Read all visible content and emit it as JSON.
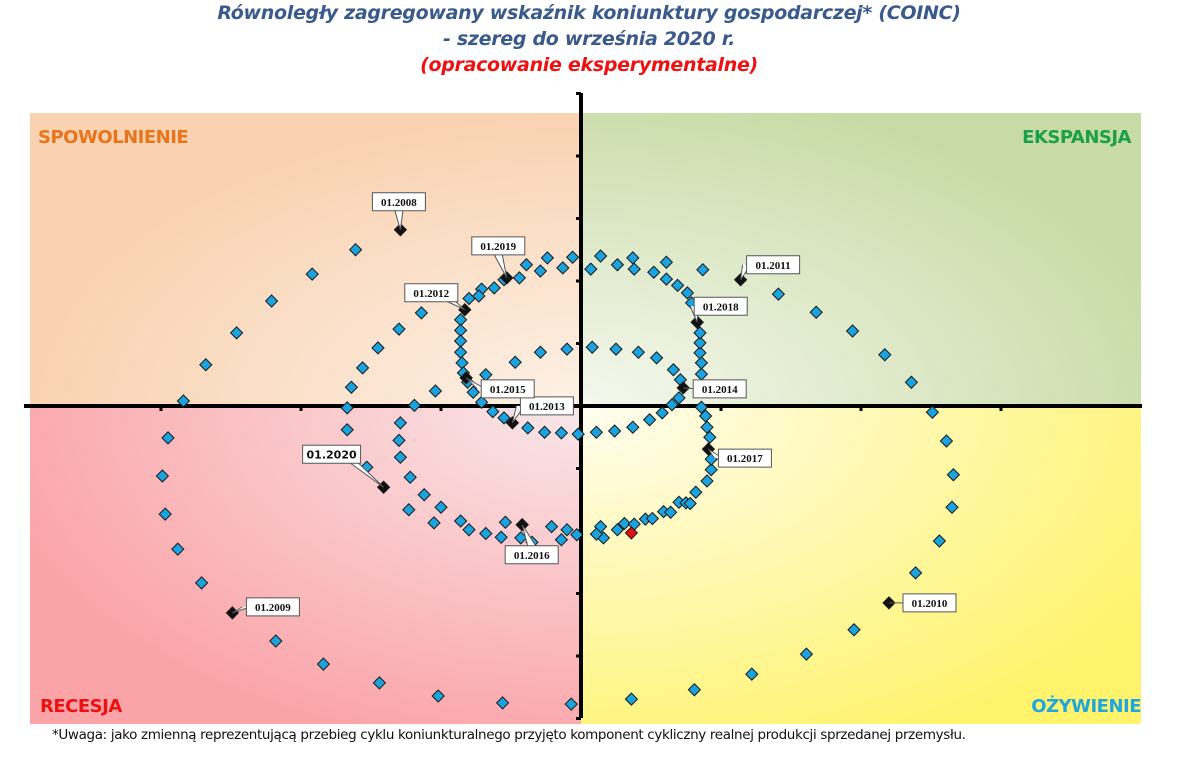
{
  "chart_data": {
    "type": "scatter",
    "title": "Równoległy zagregowany wskaźnik koniunktury gospodarczej* (COINC)",
    "subtitle": "- szereg do września 2020 r.",
    "note": "(opracowanie eksperymentalne)",
    "xlabel": "",
    "ylabel": "",
    "xlim": [
      -3.96,
      4.0
    ],
    "ylim": [
      -5.0,
      5.0
    ],
    "x_ticks": [
      -3,
      -2,
      -1,
      1,
      2,
      3
    ],
    "y_ticks": [
      -5,
      -4,
      -3,
      -2,
      -1,
      1,
      2,
      3,
      4,
      5
    ],
    "grid": false,
    "quadrants": {
      "top_left": {
        "label": "SPOWOLNIENIE",
        "color": "#e8741c",
        "fill": "#f9d5b6"
      },
      "top_right": {
        "label": "EKSPANSJA",
        "color": "#1aa04a",
        "fill": "#cfdfb0"
      },
      "bottom_left": {
        "label": "RECESJA",
        "color": "#ee1111",
        "fill": "#fba9ad"
      },
      "bottom_right": {
        "label": "OŻYWIENIE",
        "color": "#1ea6e0",
        "fill": "#fff57a"
      }
    },
    "marker_colors": {
      "regular": "#1ba3e0",
      "labeled": "#111111",
      "latest": "#e01010"
    },
    "points": [
      {
        "x": -1.29,
        "y": 2.82,
        "label": "01.2008"
      },
      {
        "x": -1.61,
        "y": 2.5
      },
      {
        "x": -1.92,
        "y": 2.11
      },
      {
        "x": -2.21,
        "y": 1.68
      },
      {
        "x": -2.46,
        "y": 1.17
      },
      {
        "x": -2.68,
        "y": 0.66
      },
      {
        "x": -2.84,
        "y": 0.08
      },
      {
        "x": -2.95,
        "y": -0.51
      },
      {
        "x": -2.99,
        "y": -1.12
      },
      {
        "x": -2.97,
        "y": -1.73
      },
      {
        "x": -2.88,
        "y": -2.29
      },
      {
        "x": -2.71,
        "y": -2.83
      },
      {
        "x": -2.49,
        "y": -3.31,
        "label": "01.2009"
      },
      {
        "x": -2.18,
        "y": -3.76
      },
      {
        "x": -1.84,
        "y": -4.13
      },
      {
        "x": -1.44,
        "y": -4.43
      },
      {
        "x": -1.02,
        "y": -4.64
      },
      {
        "x": -0.56,
        "y": -4.75
      },
      {
        "x": -0.07,
        "y": -4.77
      },
      {
        "x": 0.36,
        "y": -4.69
      },
      {
        "x": 0.81,
        "y": -4.54
      },
      {
        "x": 1.22,
        "y": -4.29
      },
      {
        "x": 1.61,
        "y": -3.97
      },
      {
        "x": 1.95,
        "y": -3.58
      },
      {
        "x": 2.2,
        "y": -3.15,
        "label": "01.2010"
      },
      {
        "x": 2.39,
        "y": -2.67
      },
      {
        "x": 2.56,
        "y": -2.16
      },
      {
        "x": 2.65,
        "y": -1.62
      },
      {
        "x": 2.66,
        "y": -1.1
      },
      {
        "x": 2.61,
        "y": -0.56
      },
      {
        "x": 2.51,
        "y": -0.1
      },
      {
        "x": 2.36,
        "y": 0.38
      },
      {
        "x": 2.17,
        "y": 0.82
      },
      {
        "x": 1.94,
        "y": 1.2
      },
      {
        "x": 1.68,
        "y": 1.5
      },
      {
        "x": 1.41,
        "y": 1.79
      },
      {
        "x": 1.14,
        "y": 2.02,
        "label": "01.2011"
      },
      {
        "x": 0.87,
        "y": 2.18
      },
      {
        "x": 0.61,
        "y": 2.3
      },
      {
        "x": 0.37,
        "y": 2.37
      },
      {
        "x": 0.14,
        "y": 2.4
      },
      {
        "x": -0.06,
        "y": 2.38
      },
      {
        "x": -0.24,
        "y": 2.37
      },
      {
        "x": -0.39,
        "y": 2.26
      },
      {
        "x": -0.55,
        "y": 2.02
      },
      {
        "x": -0.71,
        "y": 1.87
      },
      {
        "x": -0.8,
        "y": 1.72
      },
      {
        "x": -0.83,
        "y": 1.54,
        "label": "01.2012"
      },
      {
        "x": -0.86,
        "y": 1.38
      },
      {
        "x": -0.86,
        "y": 1.21
      },
      {
        "x": -0.86,
        "y": 1.04
      },
      {
        "x": -0.86,
        "y": 0.86
      },
      {
        "x": -0.85,
        "y": 0.69
      },
      {
        "x": -0.84,
        "y": 0.53
      },
      {
        "x": -0.81,
        "y": 0.38
      },
      {
        "x": -0.77,
        "y": 0.22
      },
      {
        "x": -0.71,
        "y": 0.06
      },
      {
        "x": -0.63,
        "y": -0.09
      },
      {
        "x": -0.55,
        "y": -0.19
      },
      {
        "x": -0.49,
        "y": -0.27,
        "label": "01.2013"
      },
      {
        "x": -0.38,
        "y": -0.35
      },
      {
        "x": -0.26,
        "y": -0.42
      },
      {
        "x": -0.14,
        "y": -0.43
      },
      {
        "x": -0.02,
        "y": -0.45
      },
      {
        "x": 0.11,
        "y": -0.42
      },
      {
        "x": 0.24,
        "y": -0.4
      },
      {
        "x": 0.37,
        "y": -0.34
      },
      {
        "x": 0.49,
        "y": -0.22
      },
      {
        "x": 0.58,
        "y": -0.11
      },
      {
        "x": 0.65,
        "y": 0.02
      },
      {
        "x": 0.7,
        "y": 0.13
      },
      {
        "x": 0.73,
        "y": 0.29,
        "label": "01.2014"
      },
      {
        "x": 0.71,
        "y": 0.42
      },
      {
        "x": 0.66,
        "y": 0.58
      },
      {
        "x": 0.54,
        "y": 0.77
      },
      {
        "x": 0.41,
        "y": 0.86
      },
      {
        "x": 0.25,
        "y": 0.91
      },
      {
        "x": 0.08,
        "y": 0.94
      },
      {
        "x": -0.1,
        "y": 0.91
      },
      {
        "x": -0.29,
        "y": 0.86
      },
      {
        "x": -0.47,
        "y": 0.7
      },
      {
        "x": -0.68,
        "y": 0.5
      },
      {
        "x": -0.82,
        "y": 0.45,
        "label": "01.2015"
      },
      {
        "x": -1.04,
        "y": 0.24
      },
      {
        "x": -1.19,
        "y": 0.01
      },
      {
        "x": -1.29,
        "y": -0.27
      },
      {
        "x": -1.3,
        "y": -0.55
      },
      {
        "x": -1.29,
        "y": -0.82
      },
      {
        "x": -1.22,
        "y": -1.14
      },
      {
        "x": -1.12,
        "y": -1.42
      },
      {
        "x": -1.0,
        "y": -1.62
      },
      {
        "x": -0.86,
        "y": -1.84
      },
      {
        "x": -0.68,
        "y": -2.04
      },
      {
        "x": -0.54,
        "y": -1.86
      },
      {
        "x": -0.43,
        "y": -2.11
      },
      {
        "x": -0.42,
        "y": -1.9
      },
      {
        "x": -0.42,
        "y": -1.9,
        "label": "01.2016"
      },
      {
        "x": -0.21,
        "y": -1.93
      },
      {
        "x": -0.1,
        "y": -1.98
      },
      {
        "x": -0.03,
        "y": -2.06
      },
      {
        "x": 0.14,
        "y": -1.93
      },
      {
        "x": 0.16,
        "y": -2.11
      },
      {
        "x": 0.31,
        "y": -1.88
      },
      {
        "x": 0.46,
        "y": -1.81
      },
      {
        "x": 0.59,
        "y": -1.69
      },
      {
        "x": 0.7,
        "y": -1.54
      },
      {
        "x": 0.82,
        "y": -1.38
      },
      {
        "x": 0.9,
        "y": -1.2
      },
      {
        "x": 0.93,
        "y": -1.02
      },
      {
        "x": 0.93,
        "y": -0.85
      },
      {
        "x": 0.91,
        "y": -0.69,
        "label": "01.2017"
      },
      {
        "x": 0.92,
        "y": -0.5
      },
      {
        "x": 0.9,
        "y": -0.34
      },
      {
        "x": 0.89,
        "y": -0.16
      },
      {
        "x": 0.86,
        "y": -0.02
      },
      {
        "x": 0.86,
        "y": 0.51
      },
      {
        "x": 0.86,
        "y": 0.69
      },
      {
        "x": 0.85,
        "y": 0.85
      },
      {
        "x": 0.85,
        "y": 1.01
      },
      {
        "x": 0.85,
        "y": 1.17
      },
      {
        "x": 0.83,
        "y": 1.34
      },
      {
        "x": 0.83,
        "y": 1.34,
        "label": "01.2018"
      },
      {
        "x": 0.79,
        "y": 1.65
      },
      {
        "x": 0.76,
        "y": 1.81
      },
      {
        "x": 0.69,
        "y": 1.93
      },
      {
        "x": 0.61,
        "y": 2.03
      },
      {
        "x": 0.52,
        "y": 2.14
      },
      {
        "x": 0.38,
        "y": 2.19
      },
      {
        "x": 0.26,
        "y": 2.26
      },
      {
        "x": 0.07,
        "y": 2.19
      },
      {
        "x": -0.13,
        "y": 2.21
      },
      {
        "x": -0.29,
        "y": 2.16
      },
      {
        "x": -0.44,
        "y": 2.05
      },
      {
        "x": -0.53,
        "y": 2.05,
        "label": "01.2019"
      },
      {
        "x": -0.62,
        "y": 1.89
      },
      {
        "x": -0.73,
        "y": 1.76
      },
      {
        "x": -1.14,
        "y": 1.49
      },
      {
        "x": -1.3,
        "y": 1.23
      },
      {
        "x": -1.45,
        "y": 0.93
      },
      {
        "x": -1.56,
        "y": 0.61
      },
      {
        "x": -1.64,
        "y": 0.3
      },
      {
        "x": -1.67,
        "y": -0.03
      },
      {
        "x": -1.67,
        "y": -0.38
      },
      {
        "x": -1.53,
        "y": -0.98
      },
      {
        "x": -1.41,
        "y": -1.3,
        "label": "01.2020"
      },
      {
        "x": -1.23,
        "y": -1.66
      },
      {
        "x": -1.05,
        "y": -1.87
      },
      {
        "x": -0.8,
        "y": -1.98
      },
      {
        "x": -0.57,
        "y": -2.1
      },
      {
        "x": -0.35,
        "y": -2.18
      },
      {
        "x": -0.14,
        "y": -2.14
      },
      {
        "x": 0.11,
        "y": -2.05
      },
      {
        "x": 0.26,
        "y": -1.98
      },
      {
        "x": 0.38,
        "y": -1.89
      },
      {
        "x": 0.51,
        "y": -1.8
      },
      {
        "x": 0.64,
        "y": -1.7
      },
      {
        "x": 0.75,
        "y": -1.55
      },
      {
        "x": 0.78,
        "y": -1.56
      },
      {
        "x": 0.36,
        "y": -2.03,
        "latest": true
      }
    ]
  },
  "footnote": "*Uwaga: jako zmienną reprezentującą przebieg cyklu koniunkturalnego przyjęto komponent cykliczny realnej produkcji sprzedanej przemysłu."
}
